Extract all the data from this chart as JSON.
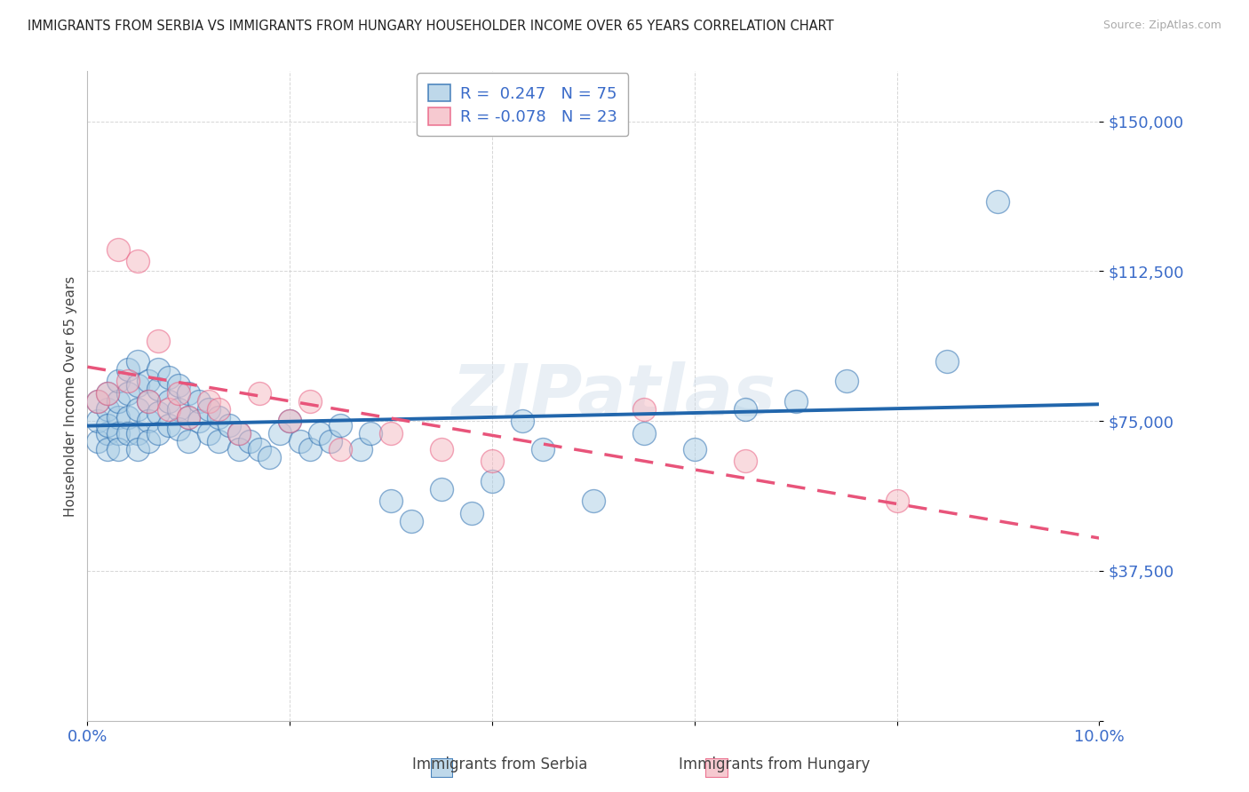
{
  "title": "IMMIGRANTS FROM SERBIA VS IMMIGRANTS FROM HUNGARY HOUSEHOLDER INCOME OVER 65 YEARS CORRELATION CHART",
  "source": "Source: ZipAtlas.com",
  "ylabel": "Householder Income Over 65 years",
  "xlim": [
    0.0,
    0.1
  ],
  "ylim": [
    0,
    162500
  ],
  "yticks": [
    0,
    37500,
    75000,
    112500,
    150000
  ],
  "ytick_labels": [
    "",
    "$37,500",
    "$75,000",
    "$112,500",
    "$150,000"
  ],
  "xticks": [
    0.0,
    0.02,
    0.04,
    0.06,
    0.08,
    0.1
  ],
  "xtick_labels": [
    "0.0%",
    "",
    "",
    "",
    "",
    "10.0%"
  ],
  "serbia_R": 0.247,
  "serbia_N": 75,
  "hungary_R": -0.078,
  "hungary_N": 23,
  "serbia_color": "#a8cce4",
  "hungary_color": "#f4b8c1",
  "serbia_line_color": "#2166ac",
  "hungary_line_color": "#e8547a",
  "watermark": "ZIPatlas",
  "serbia_x": [
    0.001,
    0.001,
    0.001,
    0.002,
    0.002,
    0.002,
    0.002,
    0.002,
    0.003,
    0.003,
    0.003,
    0.003,
    0.003,
    0.004,
    0.004,
    0.004,
    0.004,
    0.005,
    0.005,
    0.005,
    0.005,
    0.005,
    0.006,
    0.006,
    0.006,
    0.006,
    0.007,
    0.007,
    0.007,
    0.007,
    0.008,
    0.008,
    0.008,
    0.009,
    0.009,
    0.009,
    0.01,
    0.01,
    0.01,
    0.011,
    0.011,
    0.012,
    0.012,
    0.013,
    0.013,
    0.014,
    0.015,
    0.015,
    0.016,
    0.017,
    0.018,
    0.019,
    0.02,
    0.021,
    0.022,
    0.023,
    0.024,
    0.025,
    0.027,
    0.028,
    0.03,
    0.032,
    0.035,
    0.038,
    0.04,
    0.043,
    0.045,
    0.05,
    0.055,
    0.06,
    0.065,
    0.07,
    0.075,
    0.085,
    0.09
  ],
  "serbia_y": [
    70000,
    75000,
    80000,
    72000,
    78000,
    82000,
    68000,
    74000,
    76000,
    80000,
    85000,
    72000,
    68000,
    88000,
    82000,
    76000,
    72000,
    90000,
    84000,
    78000,
    72000,
    68000,
    85000,
    80000,
    75000,
    70000,
    88000,
    83000,
    77000,
    72000,
    86000,
    80000,
    74000,
    84000,
    78000,
    73000,
    82000,
    76000,
    70000,
    80000,
    75000,
    78000,
    72000,
    76000,
    70000,
    74000,
    72000,
    68000,
    70000,
    68000,
    66000,
    72000,
    75000,
    70000,
    68000,
    72000,
    70000,
    74000,
    68000,
    72000,
    55000,
    50000,
    58000,
    52000,
    60000,
    75000,
    68000,
    55000,
    72000,
    68000,
    78000,
    80000,
    85000,
    90000,
    130000
  ],
  "hungary_x": [
    0.001,
    0.002,
    0.003,
    0.004,
    0.005,
    0.006,
    0.007,
    0.008,
    0.009,
    0.01,
    0.012,
    0.013,
    0.015,
    0.017,
    0.02,
    0.022,
    0.025,
    0.03,
    0.035,
    0.04,
    0.055,
    0.065,
    0.08
  ],
  "hungary_y": [
    80000,
    82000,
    118000,
    85000,
    115000,
    80000,
    95000,
    78000,
    82000,
    76000,
    80000,
    78000,
    72000,
    82000,
    75000,
    80000,
    68000,
    72000,
    68000,
    65000,
    78000,
    65000,
    55000
  ]
}
